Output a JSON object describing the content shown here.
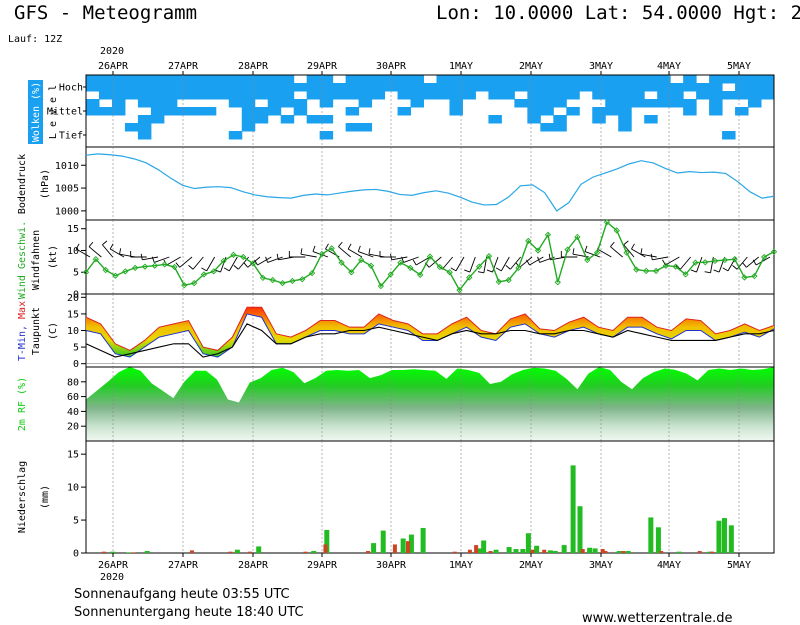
{
  "header": {
    "model_title": "GFS - Meteogramm",
    "location": "Lon: 10.0000 Lat: 54.0000 Hgt: 2",
    "run": "Lauf: 12Z"
  },
  "top_year": "2020",
  "bottom_year": "2020",
  "date_labels": [
    "26APR",
    "27APR",
    "28APR",
    "29APR",
    "30APR",
    "1MAY",
    "2MAY",
    "3MAY",
    "4MAY",
    "5MAY"
  ],
  "footer": {
    "sunrise": "Sonnenaufgang heute 03:55 UTC",
    "sunset": "Sonnenuntergang heute 18:40 UTC",
    "website": "www.wetterzentrale.de"
  },
  "colors": {
    "cloud": "#1aa0f0",
    "pressure": "#2aa6e6",
    "wind": "#22aa22",
    "tmin": "#2233cc",
    "tmax": "#dd2222",
    "dewpoint": "#000000",
    "rh": "#11cc11",
    "precip_conv": "#22bb22",
    "precip_large": "#cc4422",
    "temp_band": "#f0c000"
  },
  "chart_data": [
    {
      "type": "heatmap",
      "panel": "clouds",
      "ylabel": "Wolken (%)",
      "ylabel2": "L e v e l",
      "levels": [
        "Hoch",
        "Mittel",
        "Tief"
      ],
      "level_keys": [
        "high",
        "mid",
        "low"
      ],
      "x": [
        "26APR",
        "27APR",
        "28APR",
        "29APR",
        "30APR",
        "1MAY",
        "2MAY",
        "3MAY",
        "4MAY",
        "5MAY"
      ],
      "high": [
        "11111111111111110110111111011111111111111111101011111",
        "11111111111111111111111111111111111111111111111110111",
        "01111111111111110111111011111101101111011110110111111"
      ],
      "mid": [
        "10101110000110111010010001001000011110001111111010010",
        "11100111110011101000100010001000001101011100001010100",
        "00001100000011010110000000000001001010010101000000000"
      ],
      "low": [
        "00011000000010000000110000000000000110000100000000000",
        "00001000000100000010000000000000000000000000000001000",
        "00000000000000000000000000000000000000000000000000000"
      ]
    },
    {
      "type": "line",
      "panel": "pressure",
      "ylabel": "Bodendruck",
      "unit": "(hPa)",
      "yticks": [
        1000,
        1005,
        1010
      ],
      "ylim": [
        998,
        1014
      ],
      "series": [
        {
          "values": [
            1012.2,
            1012.5,
            1012.3,
            1012.0,
            1011.4,
            1010.5,
            1009.0,
            1007.2,
            1005.6,
            1004.9,
            1005.2,
            1005.3,
            1005.1,
            1004.2,
            1003.5,
            1003.1,
            1002.9,
            1002.8,
            1003.4,
            1003.7,
            1003.5,
            1003.9,
            1004.3,
            1004.6,
            1004.7,
            1004.3,
            1003.6,
            1003.4,
            1004.0,
            1004.4,
            1003.9,
            1003.0,
            1001.9,
            1001.3,
            1001.4,
            1003.0,
            1005.5,
            1005.7,
            1004.0,
            1000.0,
            1001.8,
            1005.8,
            1007.4,
            1008.3,
            1009.2,
            1010.3,
            1011.0,
            1010.5,
            1009.3,
            1008.3,
            1008.6,
            1008.4,
            1008.5,
            1008.2,
            1006.4,
            1004.2,
            1002.8,
            1003.2
          ]
        }
      ]
    },
    {
      "type": "line",
      "panel": "wind",
      "ylabel": "Wind Geschwi.",
      "ylabel2": "Windfahnen",
      "unit": "(kt)",
      "yticks": [
        0,
        5,
        10,
        15
      ],
      "ylim": [
        0,
        17
      ],
      "series": [
        {
          "values": [
            5.0,
            8.0,
            5.5,
            4.2,
            5.2,
            6.0,
            6.3,
            6.5,
            6.8,
            6.2,
            2.0,
            2.5,
            4.5,
            5.2,
            7.6,
            9.0,
            8.5,
            7.0,
            3.7,
            3.2,
            2.5,
            3.0,
            3.4,
            4.8,
            9.2,
            10.5,
            7.2,
            5.0,
            7.8,
            6.5,
            1.8,
            4.5,
            7.2,
            6.0,
            4.4,
            8.6,
            6.2,
            5.0,
            0.9,
            3.8,
            6.3,
            8.7,
            2.8,
            3.2,
            6.0,
            12.2,
            10.0,
            13.6,
            2.7,
            10.2,
            13.1,
            7.8,
            9.5,
            16.5,
            14.6,
            9.5,
            5.6,
            5.3,
            5.3,
            6.5,
            6.3,
            4.5,
            7.2,
            7.3,
            7.6,
            7.8,
            8.0,
            3.8,
            4.1,
            8.5,
            9.7
          ]
        }
      ],
      "barbs_dir_deg": [
        300,
        310,
        320,
        300,
        280,
        270,
        260,
        250,
        240,
        230,
        220,
        210,
        200,
        210,
        220,
        230,
        240,
        250,
        260,
        270,
        280,
        290,
        300,
        310,
        300,
        290,
        280,
        270,
        260,
        250,
        240,
        230,
        220,
        210,
        200,
        190,
        200,
        210,
        220,
        230,
        240,
        250,
        260,
        270,
        280,
        290,
        300,
        310,
        320,
        300,
        280,
        260,
        240,
        220,
        200,
        190,
        200,
        210,
        220,
        230,
        240
      ]
    },
    {
      "type": "area",
      "panel": "temperature",
      "ylabel": "T-Min, Max",
      "ylabel2": "Taupunkt",
      "unit": "(C)",
      "yticks": [
        0,
        5,
        10,
        15,
        20
      ],
      "ylim": [
        -1,
        21
      ],
      "series": [
        {
          "key": "tmax",
          "values": [
            14.0,
            12.0,
            6.0,
            4.0,
            7.0,
            11.0,
            12.0,
            13.0,
            5.0,
            4.0,
            8.0,
            17.0,
            17.0,
            9.0,
            8.0,
            10.0,
            13.0,
            13.0,
            11.0,
            11.0,
            15.0,
            13.0,
            12.0,
            9.0,
            9.0,
            12.0,
            14.0,
            10.0,
            9.0,
            13.5,
            15.0,
            10.5,
            10.0,
            12.5,
            14.0,
            11.0,
            10.0,
            14.0,
            14.0,
            11.0,
            10.0,
            13.5,
            13.0,
            9.0,
            10.0,
            12.0,
            10.0,
            11.5
          ]
        },
        {
          "key": "tmin",
          "values": [
            10.0,
            9.0,
            3.0,
            2.0,
            5.0,
            8.0,
            9.0,
            10.0,
            3.0,
            2.0,
            5.0,
            15.0,
            14.0,
            6.0,
            6.0,
            8.0,
            10.0,
            10.0,
            9.0,
            9.0,
            12.0,
            11.0,
            10.0,
            7.0,
            7.0,
            9.0,
            11.0,
            8.0,
            7.0,
            11.0,
            12.0,
            9.0,
            8.0,
            10.0,
            11.0,
            9.0,
            8.0,
            11.0,
            11.0,
            9.0,
            7.5,
            10.0,
            10.0,
            7.0,
            8.0,
            9.5,
            8.0,
            10.5
          ]
        },
        {
          "key": "dewpoint",
          "values": [
            6.0,
            4.0,
            2.0,
            3.0,
            4.0,
            5.0,
            6.0,
            6.0,
            2.0,
            3.0,
            5.0,
            12.0,
            10.0,
            6.0,
            6.0,
            8.0,
            9.0,
            9.0,
            10.0,
            10.0,
            11.0,
            10.0,
            9.0,
            8.0,
            7.0,
            9.0,
            10.0,
            9.0,
            9.0,
            10.0,
            10.0,
            9.0,
            9.0,
            10.0,
            10.0,
            9.0,
            8.0,
            10.0,
            9.0,
            8.0,
            7.0,
            7.0,
            7.0,
            7.0,
            8.0,
            9.0,
            9.0,
            10.0
          ]
        }
      ]
    },
    {
      "type": "area",
      "panel": "humidity",
      "ylabel": "2m RF (%)",
      "yticks": [
        20,
        40,
        60,
        80
      ],
      "ylim": [
        0,
        100
      ],
      "series": [
        {
          "values": [
            56.0,
            68.0,
            80.0,
            93.0,
            100.0,
            95.0,
            78.0,
            68.0,
            58.0,
            80.0,
            95.0,
            95.0,
            83.0,
            56.0,
            52.0,
            79.0,
            85.0,
            96.0,
            99.0,
            93.0,
            78.0,
            85.0,
            95.0,
            96.0,
            95.0,
            96.0,
            85.0,
            89.0,
            96.0,
            96.0,
            97.0,
            96.0,
            95.0,
            84.0,
            98.0,
            96.0,
            92.0,
            77.0,
            80.0,
            90.0,
            96.0,
            99.0,
            98.0,
            95.0,
            84.0,
            70.0,
            91.0,
            100.0,
            96.0,
            80.0,
            70.0,
            85.0,
            93.0,
            98.0,
            96.0,
            91.0,
            82.0,
            96.0,
            98.0,
            96.0,
            98.0,
            96.0,
            97.0,
            100.0
          ]
        }
      ]
    },
    {
      "type": "bar",
      "panel": "precipitation",
      "ylabel": "Niederschlag",
      "unit": "(mm)",
      "yticks": [
        0,
        5,
        10,
        15
      ],
      "ylim": [
        0,
        17
      ],
      "bars_conv": [
        [
          3.9,
          0.2
        ],
        [
          6.2,
          0.1
        ],
        [
          8.9,
          0.3
        ],
        [
          22.0,
          0.5
        ],
        [
          25.1,
          1.0
        ],
        [
          33.1,
          0.3
        ],
        [
          35.0,
          3.5
        ],
        [
          41.8,
          1.5
        ],
        [
          43.2,
          3.4
        ],
        [
          46.1,
          2.2
        ],
        [
          47.3,
          2.8
        ],
        [
          49.0,
          3.8
        ],
        [
          57.2,
          0.7
        ],
        [
          57.8,
          1.9
        ],
        [
          59.6,
          0.5
        ],
        [
          61.5,
          0.9
        ],
        [
          62.5,
          0.6
        ],
        [
          63.5,
          0.6
        ],
        [
          64.3,
          3.0
        ],
        [
          65.5,
          1.1
        ],
        [
          67.5,
          0.4
        ],
        [
          68.2,
          0.3
        ],
        [
          69.5,
          1.2
        ],
        [
          70.8,
          13.3
        ],
        [
          71.8,
          7.1
        ],
        [
          73.2,
          0.8
        ],
        [
          74.0,
          0.7
        ],
        [
          77.5,
          0.3
        ],
        [
          78.8,
          0.3
        ],
        [
          82.1,
          5.4
        ],
        [
          83.2,
          3.9
        ],
        [
          86.2,
          0.2
        ],
        [
          90.7,
          0.2
        ],
        [
          92.0,
          4.9
        ],
        [
          92.8,
          5.3
        ],
        [
          93.8,
          4.2
        ]
      ],
      "bars_large": [
        [
          2.6,
          0.2
        ],
        [
          6.9,
          0.1
        ],
        [
          15.4,
          0.4
        ],
        [
          21.0,
          0.2
        ],
        [
          23.8,
          0.2
        ],
        [
          31.9,
          0.2
        ],
        [
          34.8,
          1.3
        ],
        [
          41.0,
          0.3
        ],
        [
          44.9,
          1.3
        ],
        [
          46.8,
          1.8
        ],
        [
          53.6,
          0.2
        ],
        [
          55.8,
          0.5
        ],
        [
          56.7,
          1.2
        ],
        [
          58.8,
          0.3
        ],
        [
          64.9,
          0.5
        ],
        [
          66.6,
          0.5
        ],
        [
          72.2,
          0.6
        ],
        [
          75.1,
          0.6
        ],
        [
          75.5,
          0.3
        ],
        [
          78.1,
          0.3
        ],
        [
          83.6,
          0.3
        ],
        [
          89.2,
          0.3
        ],
        [
          91.0,
          0.2
        ]
      ]
    }
  ]
}
